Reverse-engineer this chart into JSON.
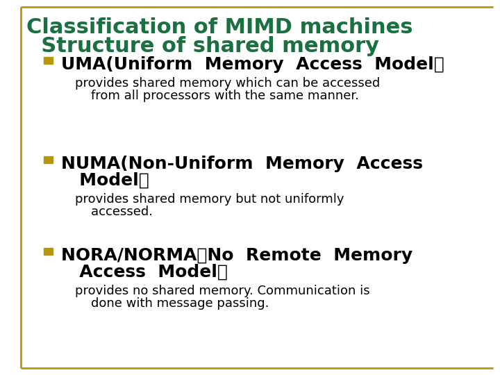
{
  "background_color": "#ffffff",
  "border_color": "#b8960c",
  "title_line1": "Classification of MIMD machines",
  "title_line2": "  Structure of shared memory",
  "title_color": "#1a7040",
  "bullet_color": "#b8960c",
  "bullet_items": [
    {
      "header": "UMA(Uniform  Memory  Access  Model）",
      "body_line1": "provides shared memory which can be accessed",
      "body_line2": "    from all processors with the same manner."
    },
    {
      "header": "NUMA(Non-Uniform  Memory  Access",
      "header2": "   Model）",
      "body_line1": "provides shared memory but not uniformly",
      "body_line2": "    accessed."
    },
    {
      "header": "NORA/NORMA（No  Remote  Memory",
      "header2": "   Access  Model）",
      "body_line1": "provides no shared memory. Communication is",
      "body_line2": "    done with message passing."
    }
  ],
  "title_fontsize": 22,
  "header_fontsize": 18,
  "body_fontsize": 13,
  "border_lw": 2.0
}
